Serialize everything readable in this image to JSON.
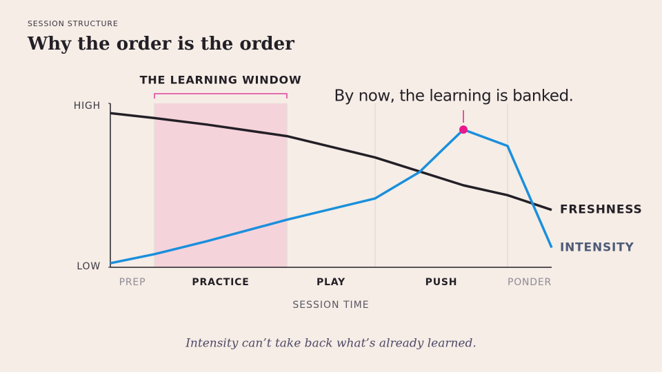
{
  "chart_data": {
    "type": "line",
    "kicker": "SESSION STRUCTURE",
    "title": "Why the order is the order",
    "xlabel": "SESSION TIME",
    "caption": "Intensity can’t take back what’s already learned.",
    "xlim": [
      0,
      20
    ],
    "ylim": [
      0,
      100
    ],
    "yticks": [
      {
        "value": 0,
        "label": "LOW"
      },
      {
        "value": 100,
        "label": "HIGH"
      }
    ],
    "phases": [
      {
        "name": "PREP",
        "start": 0,
        "end": 2,
        "muted": true
      },
      {
        "name": "PRACTICE",
        "start": 2,
        "end": 8,
        "muted": false
      },
      {
        "name": "PLAY",
        "start": 8,
        "end": 12,
        "muted": false
      },
      {
        "name": "PUSH",
        "start": 12,
        "end": 18,
        "muted": false
      },
      {
        "name": "PONDER",
        "start": 18,
        "end": 20,
        "muted": true
      }
    ],
    "highlight": {
      "label": "THE LEARNING WINDOW",
      "start": 2,
      "end": 8,
      "color": "#f5d3db",
      "bracket_color": "#e0409a"
    },
    "annotation": {
      "text": "By now, the learning is banked.",
      "x": 16,
      "y": 84,
      "color": "#e8198b"
    },
    "series": [
      {
        "name": "FRESHNESS",
        "color": "#231f26",
        "x": [
          0,
          2,
          4.4,
          8,
          12,
          16,
          18,
          20
        ],
        "values": [
          94,
          91,
          87,
          80,
          67,
          50,
          44,
          35
        ]
      },
      {
        "name": "INTENSITY",
        "color": "#1a8fdc",
        "x": [
          0,
          2,
          4.4,
          8,
          12,
          14,
          16,
          18,
          20
        ],
        "values": [
          2.5,
          8,
          16,
          29,
          42,
          58,
          84,
          74,
          12
        ]
      }
    ]
  }
}
